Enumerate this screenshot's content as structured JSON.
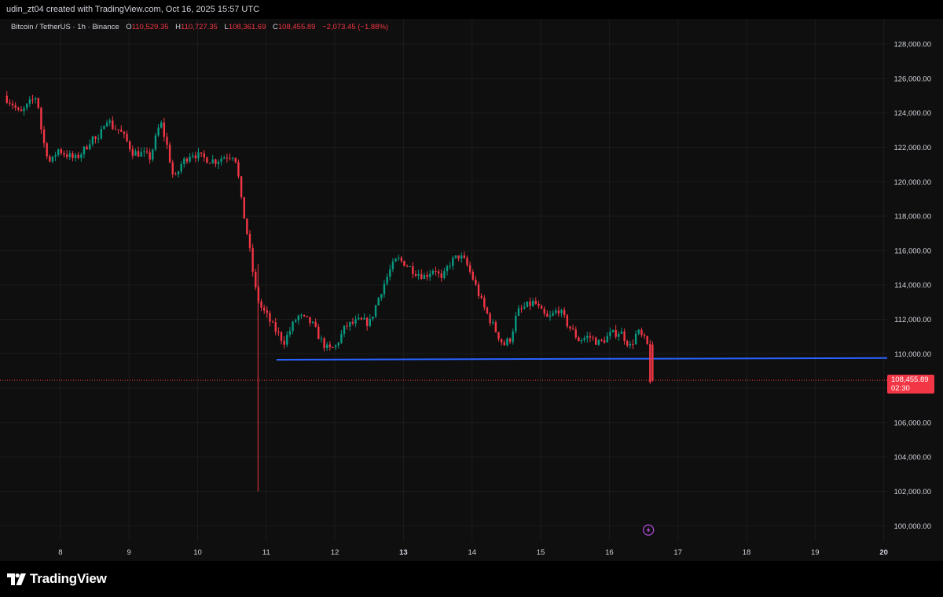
{
  "header": {
    "credit": "udin_zt04 created with TradingView.com, Oct 16, 2025 15:57 UTC"
  },
  "legend": {
    "symbol": "Bitcoin / TetherUS · 1h · Binance",
    "open_key": "O",
    "open": "110,529.35",
    "high_key": "H",
    "high": "110,727.35",
    "low_key": "L",
    "low": "108,361.69",
    "close_key": "C",
    "close": "108,455.89",
    "change": "−2,073.45 (−1.88%)"
  },
  "price_tag": {
    "value": "108,455.89",
    "timer": "02:30"
  },
  "footer": {
    "brand": "TradingView"
  },
  "icons": {
    "event_marker": "lightning-icon",
    "logo": "tradingview-logo-icon"
  },
  "colors": {
    "up": "#089981",
    "down": "#f23645",
    "support_line": "#2962ff",
    "price_line": "#f23645",
    "event_marker": "#b04ed6",
    "background": "#0f0f0f"
  },
  "chart_data": {
    "type": "candlestick",
    "symbol": "Bitcoin / TetherUS",
    "interval": "1h",
    "exchange": "Binance",
    "x_axis": {
      "type": "date",
      "tick_labels": [
        "8",
        "9",
        "10",
        "11",
        "12",
        "13",
        "14",
        "15",
        "16",
        "17",
        "18",
        "19",
        "20"
      ],
      "tick_positions": [
        8,
        9,
        10,
        11,
        12,
        13,
        14,
        15,
        16,
        17,
        18,
        19,
        20
      ],
      "bold_ticks": [
        "13",
        "20"
      ],
      "range": [
        7.2,
        20.05
      ]
    },
    "y_axis": {
      "tick_values": [
        100000,
        102000,
        104000,
        106000,
        108000,
        110000,
        112000,
        114000,
        116000,
        118000,
        120000,
        122000,
        124000,
        126000,
        128000
      ],
      "tick_labels": [
        "100,000.00",
        "102,000.00",
        "104,000.00",
        "106,000.00",
        "108,000.00",
        "110,000.00",
        "112,000.00",
        "114,000.00",
        "116,000.00",
        "118,000.00",
        "120,000.00",
        "122,000.00",
        "124,000.00",
        "126,000.00",
        "128,000.00"
      ],
      "range": [
        99100,
        129100
      ],
      "side": "right"
    },
    "grid": true,
    "path_points": [
      {
        "x": 7.22,
        "y": 125000
      },
      {
        "x": 7.35,
        "y": 124500
      },
      {
        "x": 7.45,
        "y": 123900
      },
      {
        "x": 7.6,
        "y": 124600
      },
      {
        "x": 7.7,
        "y": 125000
      },
      {
        "x": 7.78,
        "y": 122500
      },
      {
        "x": 7.9,
        "y": 121000
      },
      {
        "x": 8.0,
        "y": 121900
      },
      {
        "x": 8.12,
        "y": 121600
      },
      {
        "x": 8.25,
        "y": 121300
      },
      {
        "x": 8.4,
        "y": 121900
      },
      {
        "x": 8.5,
        "y": 122600
      },
      {
        "x": 8.6,
        "y": 122300
      },
      {
        "x": 8.7,
        "y": 123800
      },
      {
        "x": 8.8,
        "y": 123200
      },
      {
        "x": 8.9,
        "y": 123000
      },
      {
        "x": 9.0,
        "y": 122400
      },
      {
        "x": 9.1,
        "y": 121700
      },
      {
        "x": 9.25,
        "y": 121600
      },
      {
        "x": 9.35,
        "y": 121400
      },
      {
        "x": 9.5,
        "y": 123500
      },
      {
        "x": 9.6,
        "y": 122000
      },
      {
        "x": 9.7,
        "y": 120000
      },
      {
        "x": 9.8,
        "y": 121000
      },
      {
        "x": 9.95,
        "y": 121700
      },
      {
        "x": 10.1,
        "y": 121400
      },
      {
        "x": 10.3,
        "y": 121200
      },
      {
        "x": 10.45,
        "y": 121500
      },
      {
        "x": 10.58,
        "y": 121600
      },
      {
        "x": 10.62,
        "y": 120800
      },
      {
        "x": 10.68,
        "y": 118800
      },
      {
        "x": 10.75,
        "y": 117300
      },
      {
        "x": 10.82,
        "y": 115500
      },
      {
        "x": 10.88,
        "y": 113800
      },
      {
        "x": 10.95,
        "y": 112800
      },
      {
        "x": 11.05,
        "y": 112200
      },
      {
        "x": 11.15,
        "y": 111500
      },
      {
        "x": 11.3,
        "y": 110700
      },
      {
        "x": 11.5,
        "y": 112200
      },
      {
        "x": 11.7,
        "y": 111800
      },
      {
        "x": 11.85,
        "y": 110700
      },
      {
        "x": 11.95,
        "y": 110200
      },
      {
        "x": 12.05,
        "y": 110400
      },
      {
        "x": 12.2,
        "y": 111600
      },
      {
        "x": 12.4,
        "y": 111900
      },
      {
        "x": 12.55,
        "y": 111800
      },
      {
        "x": 12.7,
        "y": 113500
      },
      {
        "x": 12.85,
        "y": 114900
      },
      {
        "x": 12.95,
        "y": 115500
      },
      {
        "x": 13.05,
        "y": 115300
      },
      {
        "x": 13.2,
        "y": 114800
      },
      {
        "x": 13.35,
        "y": 114500
      },
      {
        "x": 13.5,
        "y": 115000
      },
      {
        "x": 13.6,
        "y": 114200
      },
      {
        "x": 13.7,
        "y": 115200
      },
      {
        "x": 13.85,
        "y": 115700
      },
      {
        "x": 13.95,
        "y": 115300
      },
      {
        "x": 14.05,
        "y": 114400
      },
      {
        "x": 14.2,
        "y": 112800
      },
      {
        "x": 14.35,
        "y": 111600
      },
      {
        "x": 14.5,
        "y": 110500
      },
      {
        "x": 14.6,
        "y": 110900
      },
      {
        "x": 14.7,
        "y": 112400
      },
      {
        "x": 14.85,
        "y": 112800
      },
      {
        "x": 14.95,
        "y": 113000
      },
      {
        "x": 15.05,
        "y": 112400
      },
      {
        "x": 15.15,
        "y": 112000
      },
      {
        "x": 15.3,
        "y": 112600
      },
      {
        "x": 15.45,
        "y": 111600
      },
      {
        "x": 15.6,
        "y": 110800
      },
      {
        "x": 15.75,
        "y": 111000
      },
      {
        "x": 15.9,
        "y": 110600
      },
      {
        "x": 16.05,
        "y": 111100
      },
      {
        "x": 16.2,
        "y": 111300
      },
      {
        "x": 16.35,
        "y": 110400
      },
      {
        "x": 16.45,
        "y": 111300
      },
      {
        "x": 16.55,
        "y": 110800
      },
      {
        "x": 16.6,
        "y": 110450
      },
      {
        "x": 16.63,
        "y": 108500
      }
    ],
    "wick_events": [
      {
        "x": 10.88,
        "high": 115200,
        "low": 102000
      }
    ],
    "last_candle": {
      "x": 16.63,
      "open": 110529.35,
      "high": 110727.35,
      "low": 108361.69,
      "close": 108455.89
    },
    "current_price": 108455.89,
    "support_line": {
      "x_start": 11.15,
      "y_start": 109650,
      "x_end": 20.05,
      "y_end": 109750
    },
    "event_marker": {
      "x": 16.57,
      "y": 99750
    }
  }
}
